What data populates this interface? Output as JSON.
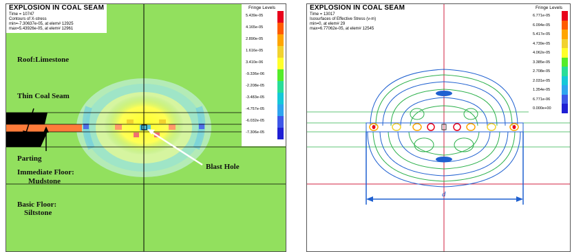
{
  "left": {
    "title": "EXPLOSION IN COAL SEAM",
    "time_line": "Time =      10747",
    "contour_line": "Contours of X-stress",
    "min_line": "min=-7.30637e-05, at elem# 12925",
    "max_line": "max=5.43926e-05, at elem# 12961",
    "fringe_title": "Fringe Levels",
    "fringe_levels": [
      "5.439e-05",
      "4.165e-05",
      "2.890e-05",
      "1.616e-05",
      "3.410e-06",
      "-9.336e-06",
      "-2.208e-05",
      "-3.483e-05",
      "-4.757e-05",
      "-6.032e-05",
      "-7.306e-05"
    ],
    "fringe_colors": [
      "#e8001a",
      "#ff5b00",
      "#ffa500",
      "#f2d22f",
      "#ffff2a",
      "#54ec29",
      "#28dd98",
      "#15c8d8",
      "#2ea5ef",
      "#3d57e8",
      "#1f1fd4"
    ],
    "labels": {
      "roof": "Roof:Limestone",
      "thin_coal": "Thin Coal Seam",
      "parting": "Parting",
      "immediate_floor_1": "Immediate Floor:",
      "immediate_floor_2": "Mudstone",
      "basic_floor_1": "Basic Floor:",
      "basic_floor_2": "Siltstone",
      "blast_hole": "Blast Hole"
    },
    "background_color": "#92e05e"
  },
  "right": {
    "title": "EXPLOSION IN COAL SEAM",
    "time_line": "Time =      13017",
    "contour_line": "Isosurfaces of Effective Stress (v-m)",
    "min_line": "min=0, at elem# 29",
    "max_line": "max=6.77062e-05, at elem# 12545",
    "fringe_title": "Fringe Levels",
    "fringe_levels": [
      "6.771e-05",
      "6.094e-05",
      "5.417e-05",
      "4.739e-05",
      "4.062e-05",
      "3.385e-05",
      "2.708e-05",
      "2.031e-05",
      "1.354e-05",
      "6.771e-06",
      "0.000e+00"
    ],
    "fringe_colors": [
      "#e8001a",
      "#ff5b00",
      "#ffa500",
      "#f2d22f",
      "#ffff2a",
      "#54ec29",
      "#28dd98",
      "#15c8d8",
      "#2ea5ef",
      "#3d57e8",
      "#1f1fd4"
    ],
    "dimension_label": "d"
  }
}
